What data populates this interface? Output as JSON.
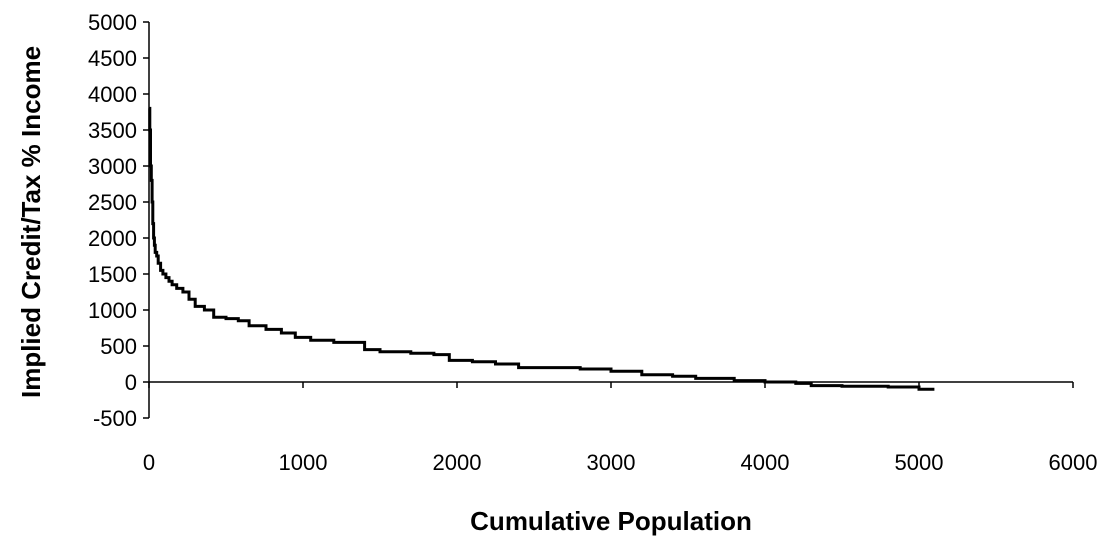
{
  "chart_data": {
    "type": "line",
    "xlabel": "Cumulative Population",
    "ylabel": "Implied Credit/Tax % Income",
    "xlim": [
      0,
      6000
    ],
    "ylim": [
      -500,
      5000
    ],
    "x_ticks": [
      0,
      1000,
      2000,
      3000,
      4000,
      5000,
      6000
    ],
    "y_ticks": [
      5000,
      4500,
      4000,
      3500,
      3000,
      2500,
      2000,
      1500,
      1000,
      500,
      0,
      -500
    ],
    "x_tick_labels": [
      "0",
      "1000",
      "2000",
      "3000",
      "4000",
      "5000",
      "6000"
    ],
    "y_tick_labels": [
      "5000",
      "4500",
      "4000",
      "3500",
      "3000",
      "2500",
      "2000",
      "1500",
      "1000",
      "500",
      "0",
      "-500"
    ],
    "grid": false,
    "series": [
      {
        "color": "#000000",
        "x": [
          0,
          5,
          10,
          15,
          20,
          25,
          30,
          35,
          40,
          50,
          60,
          75,
          90,
          110,
          130,
          150,
          180,
          220,
          260,
          300,
          360,
          420,
          500,
          580,
          650,
          760,
          860,
          950,
          1050,
          1200,
          1400,
          1500,
          1700,
          1850,
          1950,
          2100,
          2250,
          2400,
          2600,
          2800,
          3000,
          3200,
          3400,
          3550,
          3800,
          4000,
          4200,
          4300,
          4500,
          4800,
          5000,
          5100
        ],
        "y": [
          3800,
          3500,
          3000,
          2800,
          2500,
          2200,
          2000,
          1900,
          1800,
          1750,
          1650,
          1550,
          1500,
          1450,
          1400,
          1350,
          1300,
          1250,
          1150,
          1050,
          1000,
          900,
          880,
          850,
          780,
          730,
          680,
          620,
          580,
          550,
          450,
          420,
          400,
          380,
          300,
          280,
          250,
          200,
          200,
          180,
          150,
          100,
          80,
          50,
          20,
          0,
          -20,
          -50,
          -60,
          -70,
          -100,
          -100
        ]
      }
    ]
  }
}
